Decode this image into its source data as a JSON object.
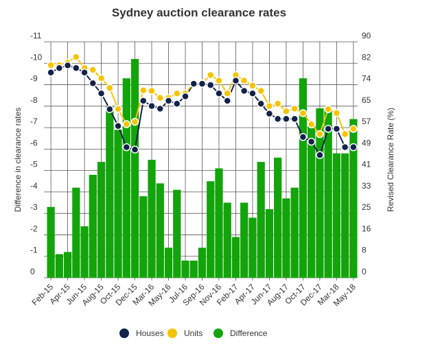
{
  "chart_data": {
    "type": "bar+line",
    "title": "Sydney auction clearance rates",
    "ylabel_left": "Difference in clearance rates",
    "ylabel_right": "Revised Clearance Rate (%)",
    "left_ticks": [
      "0",
      "-1",
      "-2",
      "-3",
      "-4",
      "-5",
      "-6",
      "-7",
      "-8",
      "-9",
      "-10",
      "-11"
    ],
    "right_ticks": [
      "0",
      "8",
      "16",
      "25",
      "33",
      "41",
      "49",
      "57",
      "65",
      "74",
      "82",
      "90"
    ],
    "left_range": [
      0,
      11
    ],
    "right_range": [
      0,
      90
    ],
    "grid": true,
    "legend_position": "bottom",
    "categories": [
      "Feb-15",
      "Mar-15",
      "Apr-15",
      "May-15",
      "Jun-15",
      "Jul-15",
      "Aug-15",
      "Sep-15",
      "Oct-15",
      "Nov-15",
      "Dec-15",
      "Feb-16",
      "Mar-16",
      "Apr-16",
      "May-16",
      "Jun-16",
      "Jul-16",
      "Aug-16",
      "Sep-16",
      "Oct-16",
      "Nov-16",
      "Dec-16",
      "Feb-17",
      "Mar-17",
      "Apr-17",
      "May-17",
      "Jun-17",
      "Jul-17",
      "Aug-17",
      "Sep-17",
      "Oct-17",
      "Nov-17",
      "Dec-17",
      "Feb-18",
      "Mar-18",
      "Apr-18",
      "May-18"
    ],
    "x_tick_labels": [
      "Feb-15",
      "Apr-15",
      "Jun-15",
      "Aug-15",
      "Oct-15",
      "Dec-15",
      "Mar-16",
      "May-16",
      "Jul-16",
      "Sep-16",
      "Nov-16",
      "Feb-17",
      "Apr-17",
      "Jun-17",
      "Aug-17",
      "Oct-17",
      "Dec-17",
      "Mar-18",
      "May-18"
    ],
    "series": [
      {
        "name": "Houses",
        "type": "line",
        "axis": "right",
        "color": "#13224a",
        "values": [
          78.3,
          80,
          81,
          80,
          78.3,
          74.2,
          70.3,
          64.3,
          57.9,
          49.8,
          48.9,
          67.5,
          65.5,
          64.5,
          67.5,
          66.4,
          69.2,
          74,
          74,
          73.5,
          70.3,
          67.5,
          75.2,
          71.3,
          70.3,
          66.4,
          62.6,
          60.6,
          60.6,
          60.6,
          53.7,
          51.9,
          46.8,
          56.8,
          56.8,
          49.8,
          49.8
        ]
      },
      {
        "name": "Units",
        "type": "line",
        "axis": "right",
        "color": "#f5c400",
        "values": [
          81.1,
          81.1,
          82.1,
          84.2,
          80,
          79.3,
          76.1,
          72.4,
          64.4,
          58.6,
          59.5,
          71.5,
          71.3,
          68.6,
          68.6,
          70.3,
          70.3,
          74.2,
          74.2,
          77.3,
          75.2,
          70.3,
          77.3,
          75.2,
          73.3,
          71.3,
          65.5,
          66.4,
          63.5,
          64.5,
          62.8,
          58.5,
          54.8,
          64.3,
          62.8,
          54.8,
          56.8
        ]
      },
      {
        "name": "Difference",
        "type": "bar",
        "axis": "left",
        "color": "#12a40a",
        "values": [
          -3.3,
          -1.1,
          -1.2,
          -4.2,
          -2.4,
          -4.8,
          -5.4,
          -8.0,
          -6.9,
          -9.3,
          -10.2,
          -3.8,
          -5.5,
          -4.4,
          -1.4,
          -4.1,
          -0.8,
          -0.8,
          -1.4,
          -4.5,
          -5.1,
          -3.5,
          -1.9,
          -3.5,
          -2.8,
          -5.4,
          -3.2,
          -5.6,
          -3.7,
          -4.2,
          -9.3,
          -7.2,
          -7.9,
          -7.9,
          -5.8,
          -5.8,
          -7.4
        ]
      }
    ]
  }
}
